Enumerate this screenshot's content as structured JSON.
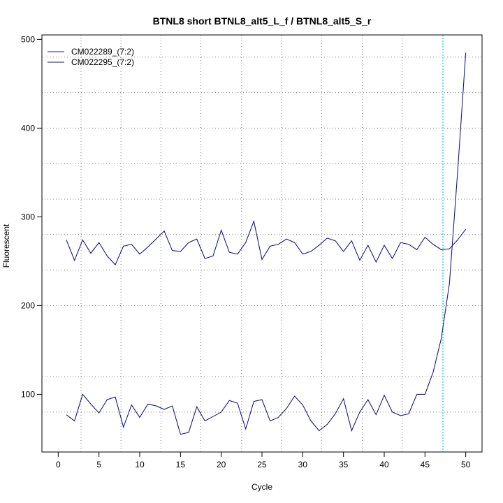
{
  "chart_data": {
    "type": "line",
    "title": "BTNL8 short BTNL8_alt5_L_f / BTNL8_alt5_S_r",
    "xlabel": "Cycle",
    "ylabel": "Fluorescent",
    "xlim": [
      -2,
      52
    ],
    "ylim": [
      35,
      505
    ],
    "x_ticks": [
      0,
      5,
      10,
      15,
      20,
      25,
      30,
      35,
      40,
      45,
      50
    ],
    "y_ticks": [
      100,
      200,
      300,
      400,
      500
    ],
    "grid": true,
    "grid_x": [
      2.8,
      7.7,
      12.6,
      17.5,
      22.5,
      27.4,
      32.3,
      37.3,
      42.2
    ],
    "grid_y": [
      80,
      120,
      200,
      240,
      280,
      320,
      360,
      400,
      440,
      480
    ],
    "threshold_cycle": 47.2,
    "legend": {
      "position": "top-left"
    },
    "colors": {
      "series": "#1a1a80",
      "threshold": "#00d0e0",
      "grid": "#808080"
    },
    "x": [
      1,
      2,
      3,
      4,
      5,
      6,
      7,
      8,
      9,
      10,
      11,
      12,
      13,
      14,
      15,
      16,
      17,
      18,
      19,
      20,
      21,
      22,
      23,
      24,
      25,
      26,
      27,
      28,
      29,
      30,
      31,
      32,
      33,
      34,
      35,
      36,
      37,
      38,
      39,
      40,
      41,
      42,
      43,
      44,
      45,
      46,
      47,
      48,
      49,
      50
    ],
    "series": [
      {
        "name": "CM022289_(7:2)",
        "values": [
          77,
          70,
          100,
          89,
          79,
          94,
          97,
          63,
          88,
          74,
          89,
          87,
          83,
          87,
          55,
          57,
          86,
          70,
          75,
          80,
          93,
          90,
          61,
          92,
          94,
          70,
          74,
          84,
          98,
          88,
          70,
          59,
          66,
          78,
          95,
          59,
          80,
          94,
          77,
          99,
          80,
          76,
          78,
          100,
          100,
          125,
          163,
          225,
          350,
          485
        ]
      },
      {
        "name": "CM022295_(7:2)",
        "values": [
          274,
          251,
          274,
          259,
          271,
          256,
          246,
          267,
          269,
          258,
          266,
          275,
          284,
          262,
          261,
          271,
          275,
          253,
          256,
          285,
          260,
          258,
          271,
          295,
          252,
          267,
          269,
          275,
          271,
          258,
          261,
          268,
          276,
          273,
          261,
          273,
          251,
          268,
          249,
          268,
          253,
          271,
          269,
          263,
          277,
          269,
          263,
          264,
          274,
          286
        ]
      }
    ]
  }
}
